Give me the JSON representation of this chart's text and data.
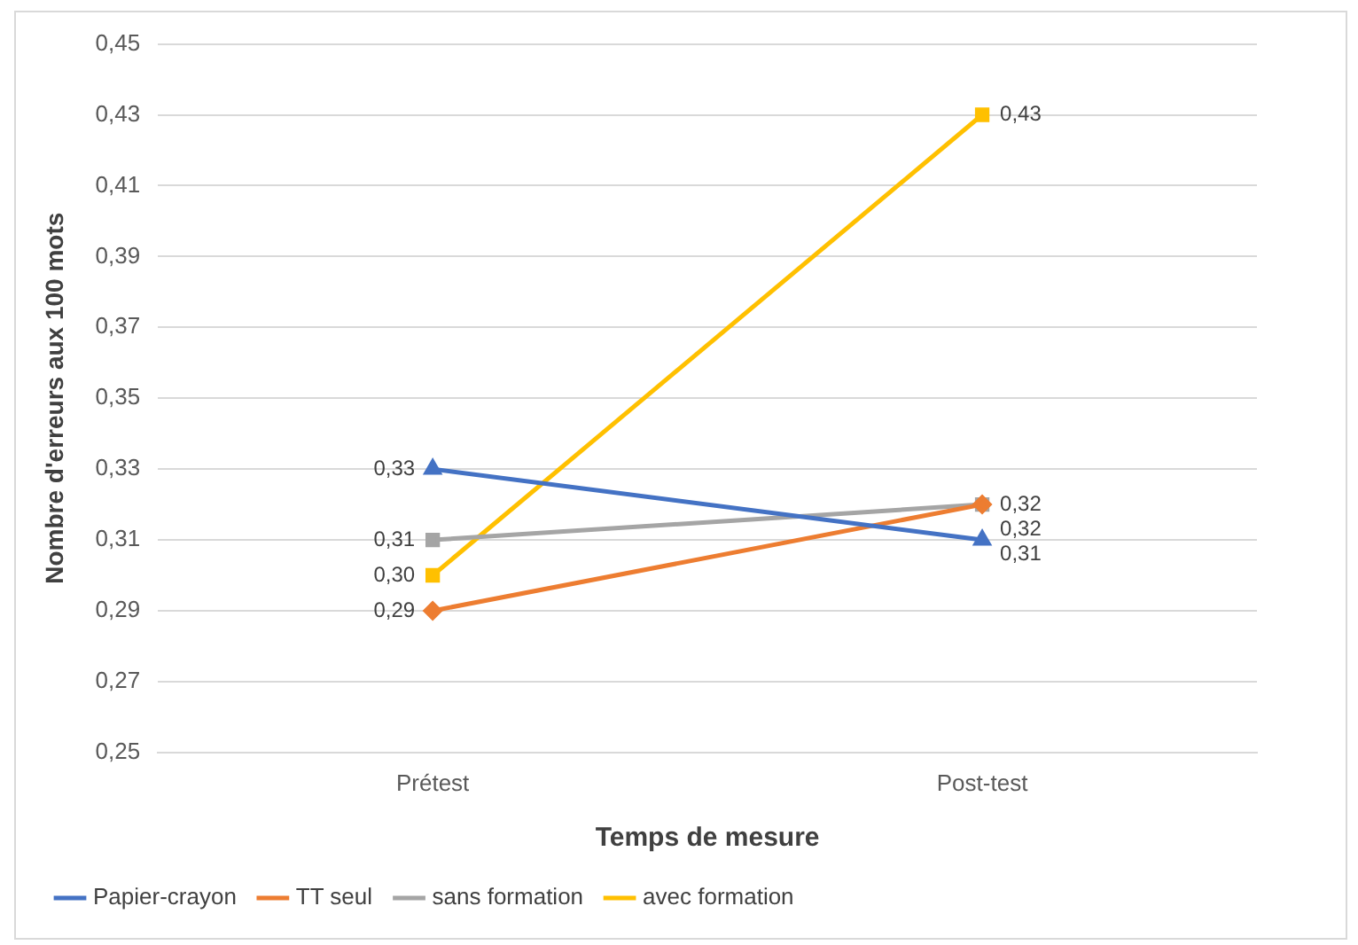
{
  "chart_data": {
    "type": "line",
    "xlabel": "Temps de mesure",
    "ylabel": "Nombre d'erreurs aux 100 mots",
    "categories": [
      "Prétest",
      "Post-test"
    ],
    "series": [
      {
        "name": "Papier-crayon",
        "color": "#4472c4",
        "values": [
          0.33,
          0.31
        ],
        "marker": "triangle",
        "value_labels": [
          "0,33",
          "0,31"
        ]
      },
      {
        "name": "TT seul",
        "color": "#ed7d31",
        "values": [
          0.29,
          0.32
        ],
        "marker": "diamond",
        "value_labels": [
          "0,29",
          "0,32"
        ]
      },
      {
        "name": "sans formation",
        "color": "#a5a5a5",
        "values": [
          0.31,
          0.32
        ],
        "marker": "square",
        "value_labels": [
          "0,31",
          "0,32"
        ]
      },
      {
        "name": "avec formation",
        "color": "#ffc000",
        "values": [
          0.3,
          0.43
        ],
        "marker": "square",
        "value_labels": [
          "0,30",
          "0,43"
        ]
      }
    ],
    "ylim": [
      0.25,
      0.45
    ],
    "yticks": [
      {
        "value": 0.25,
        "label": "0,25"
      },
      {
        "value": 0.27,
        "label": "0,27"
      },
      {
        "value": 0.29,
        "label": "0,29"
      },
      {
        "value": 0.31,
        "label": "0,31"
      },
      {
        "value": 0.33,
        "label": "0,33"
      },
      {
        "value": 0.35,
        "label": "0,35"
      },
      {
        "value": 0.37,
        "label": "0,37"
      },
      {
        "value": 0.39,
        "label": "0,39"
      },
      {
        "value": 0.41,
        "label": "0,41"
      },
      {
        "value": 0.43,
        "label": "0,43"
      },
      {
        "value": 0.45,
        "label": "0,45"
      }
    ],
    "grid": "y",
    "legend": "bottom",
    "line_style": "solid"
  }
}
